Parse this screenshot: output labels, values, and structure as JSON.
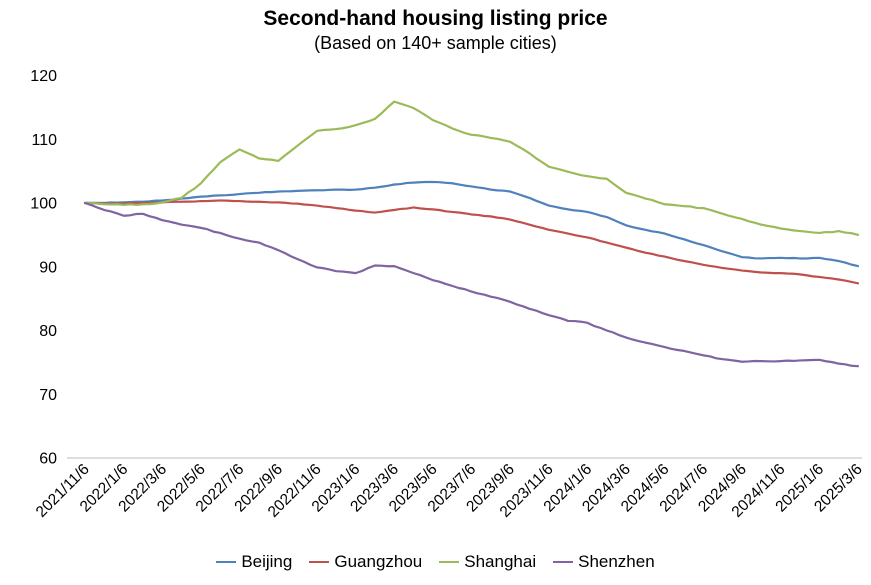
{
  "chart_data": {
    "type": "line",
    "title": "Second-hand housing listing price",
    "subtitle": "(Based on 140+ sample cities)",
    "ylim": [
      60,
      120
    ],
    "yticks": [
      120,
      110,
      100,
      90,
      80,
      70,
      60
    ],
    "grid": false,
    "legend_position": "bottom",
    "x_tick_interval": 2,
    "x_tick_labels": [
      "2021/11/6",
      "2022/1/6",
      "2022/3/6",
      "2022/5/6",
      "2022/7/6",
      "2022/9/6",
      "2022/11/6",
      "2023/1/6",
      "2023/3/6",
      "2023/5/6",
      "2023/7/6",
      "2023/9/6",
      "2023/11/6",
      "2024/1/6",
      "2024/3/6",
      "2024/5/6",
      "2024/7/6",
      "2024/9/6",
      "2024/11/6",
      "2025/1/6",
      "2025/3/6"
    ],
    "categories": [
      "2021/11/6",
      "2021/12/6",
      "2022/1/6",
      "2022/2/6",
      "2022/3/6",
      "2022/4/6",
      "2022/5/6",
      "2022/6/6",
      "2022/7/6",
      "2022/8/6",
      "2022/9/6",
      "2022/10/6",
      "2022/11/6",
      "2022/12/6",
      "2023/1/6",
      "2023/2/6",
      "2023/3/6",
      "2023/4/6",
      "2023/5/6",
      "2023/6/6",
      "2023/7/6",
      "2023/8/6",
      "2023/9/6",
      "2023/10/6",
      "2023/11/6",
      "2023/12/6",
      "2024/1/6",
      "2024/2/6",
      "2024/3/6",
      "2024/4/6",
      "2024/5/6",
      "2024/6/6",
      "2024/7/6",
      "2024/8/6",
      "2024/9/6",
      "2024/10/6",
      "2024/11/6",
      "2024/12/6",
      "2025/1/6",
      "2025/2/6",
      "2025/3/6"
    ],
    "series": [
      {
        "name": "Beijing",
        "color": "#4F81BD",
        "values": [
          100,
          100,
          100.1,
          100.2,
          100.4,
          100.7,
          101.0,
          101.2,
          101.4,
          101.6,
          101.8,
          101.9,
          102.0,
          102.1,
          102.1,
          102.4,
          102.9,
          103.2,
          103.3,
          103.1,
          102.6,
          102.1,
          101.8,
          100.8,
          99.6,
          99.0,
          98.6,
          97.8,
          96.5,
          95.8,
          95.2,
          94.3,
          93.4,
          92.4,
          91.5,
          91.3,
          91.4,
          91.3,
          91.4,
          90.9,
          90.1
        ]
      },
      {
        "name": "Guangzhou",
        "color": "#C0504D",
        "values": [
          100,
          99.9,
          99.9,
          100.0,
          100.1,
          100.2,
          100.3,
          100.4,
          100.3,
          100.2,
          100.1,
          99.9,
          99.6,
          99.2,
          98.8,
          98.5,
          98.9,
          99.3,
          99.0,
          98.6,
          98.2,
          97.9,
          97.4,
          96.6,
          95.8,
          95.2,
          94.6,
          93.8,
          93.0,
          92.2,
          91.6,
          90.9,
          90.3,
          89.8,
          89.4,
          89.1,
          89.0,
          88.8,
          88.4,
          88.0,
          87.4
        ]
      },
      {
        "name": "Shanghai",
        "color": "#9BBB59",
        "values": [
          100,
          99.8,
          99.7,
          99.8,
          100.1,
          100.8,
          103.1,
          106.4,
          108.4,
          107.0,
          106.6,
          109.0,
          111.3,
          111.6,
          112.2,
          113.2,
          115.9,
          114.9,
          113.0,
          111.7,
          110.7,
          110.2,
          109.6,
          107.8,
          105.7,
          104.9,
          104.2,
          103.8,
          101.6,
          100.7,
          99.8,
          99.5,
          99.2,
          98.3,
          97.5,
          96.6,
          96.0,
          95.6,
          95.3,
          95.6,
          95.0
        ]
      },
      {
        "name": "Shenzhen",
        "color": "#8064A2",
        "values": [
          100,
          98.9,
          98.0,
          98.3,
          97.3,
          96.6,
          96.1,
          95.3,
          94.4,
          93.8,
          92.6,
          91.2,
          89.9,
          89.3,
          89.0,
          90.2,
          90.1,
          89.0,
          87.9,
          87.0,
          86.1,
          85.3,
          84.5,
          83.4,
          82.4,
          81.5,
          81.2,
          80.0,
          78.9,
          78.1,
          77.4,
          76.8,
          76.1,
          75.5,
          75.1,
          75.2,
          75.2,
          75.3,
          75.4,
          74.8,
          74.4
        ]
      }
    ]
  }
}
